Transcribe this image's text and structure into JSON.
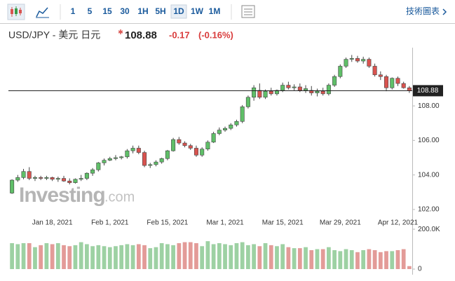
{
  "toolbar": {
    "intervals": [
      "1",
      "5",
      "15",
      "30",
      "1H",
      "5H",
      "1D",
      "1W",
      "1M"
    ],
    "selected": 6,
    "chart_link": "技術圖表"
  },
  "header": {
    "symbol": "USD/JPY - 美元 日元",
    "price": 108.88,
    "change": -0.17,
    "change_percent": {
      "value": -0.16,
      "label": "(-0.16%)"
    }
  },
  "watermark": [
    "Investing",
    ".com"
  ],
  "chart_data": {
    "type": "candlestick",
    "categories": [
      null,
      null,
      null,
      null,
      null,
      null,
      null,
      "Jan 18, 2021",
      null,
      null,
      null,
      null,
      null,
      null,
      null,
      null,
      null,
      "Feb 1, 2021",
      null,
      null,
      null,
      null,
      null,
      null,
      null,
      null,
      null,
      "Feb 15, 2021",
      null,
      null,
      null,
      null,
      null,
      null,
      null,
      null,
      null,
      "Mar 1, 2021",
      null,
      null,
      null,
      null,
      null,
      null,
      null,
      null,
      null,
      "Mar 15, 2021",
      null,
      null,
      null,
      null,
      null,
      null,
      null,
      null,
      null,
      "Mar 29, 2021",
      null,
      null,
      null,
      null,
      null,
      null,
      null,
      null,
      null,
      "Apr 12, 2021",
      null,
      null
    ],
    "open": [
      102.95,
      103.7,
      103.85,
      104.2,
      103.8,
      103.85,
      103.8,
      103.85,
      103.75,
      103.8,
      103.65,
      103.55,
      103.75,
      103.8,
      104.1,
      104.3,
      104.7,
      104.85,
      104.95,
      105.0,
      105.05,
      105.4,
      105.55,
      105.3,
      104.55,
      104.6,
      104.75,
      104.95,
      105.4,
      106.05,
      105.85,
      105.7,
      105.55,
      105.15,
      105.5,
      105.9,
      106.4,
      106.6,
      106.7,
      106.9,
      107.1,
      107.95,
      108.5,
      108.9,
      108.5,
      108.85,
      108.7,
      108.9,
      109.2,
      109.05,
      109.1,
      108.9,
      108.9,
      108.75,
      108.85,
      108.7,
      109.2,
      109.7,
      110.3,
      110.7,
      110.75,
      110.6,
      110.7,
      110.3,
      109.8,
      109.7,
      109.05,
      109.6,
      109.3,
      109.05
    ],
    "high": [
      103.75,
      104.0,
      104.35,
      104.45,
      103.95,
      103.95,
      103.95,
      103.9,
      103.9,
      103.95,
      103.8,
      103.8,
      104.0,
      104.15,
      104.4,
      104.75,
      104.95,
      105.05,
      105.15,
      105.1,
      105.5,
      105.7,
      105.7,
      105.4,
      104.7,
      104.85,
      105.0,
      105.45,
      106.15,
      106.2,
      105.95,
      105.8,
      105.7,
      105.6,
      106.0,
      106.5,
      106.75,
      106.8,
      107.0,
      107.2,
      108.05,
      108.6,
      109.2,
      109.3,
      108.95,
      109.05,
      108.95,
      109.35,
      109.4,
      109.25,
      109.3,
      109.2,
      109.15,
      109.0,
      109.05,
      109.3,
      109.8,
      110.4,
      110.8,
      110.95,
      110.9,
      110.85,
      110.8,
      110.45,
      110.0,
      109.8,
      109.65,
      109.7,
      109.4,
      109.15
    ],
    "low": [
      102.9,
      103.6,
      103.75,
      103.7,
      103.65,
      103.7,
      103.7,
      103.65,
      103.6,
      103.6,
      103.45,
      103.5,
      103.65,
      103.7,
      103.95,
      104.2,
      104.55,
      104.8,
      104.85,
      104.9,
      104.95,
      105.25,
      105.2,
      104.45,
      104.4,
      104.5,
      104.65,
      104.85,
      105.35,
      105.75,
      105.6,
      105.45,
      105.05,
      105.05,
      105.4,
      105.85,
      106.3,
      106.5,
      106.6,
      106.8,
      107.0,
      107.85,
      108.3,
      108.4,
      108.4,
      108.6,
      108.6,
      108.8,
      108.95,
      108.9,
      108.8,
      108.75,
      108.6,
      108.55,
      108.6,
      108.6,
      109.1,
      109.6,
      110.2,
      110.55,
      110.5,
      110.45,
      110.2,
      109.7,
      109.5,
      108.85,
      108.95,
      109.15,
      109.0,
      108.75
    ],
    "close": [
      103.7,
      103.85,
      104.2,
      103.8,
      103.85,
      103.8,
      103.85,
      103.75,
      103.8,
      103.65,
      103.55,
      103.75,
      103.8,
      104.1,
      104.3,
      104.7,
      104.85,
      104.95,
      105.0,
      105.05,
      105.4,
      105.55,
      105.3,
      104.55,
      104.6,
      104.75,
      104.95,
      105.4,
      106.05,
      105.85,
      105.7,
      105.55,
      105.15,
      105.5,
      105.9,
      106.4,
      106.6,
      106.7,
      106.9,
      107.1,
      107.95,
      108.5,
      109.05,
      108.5,
      108.85,
      108.7,
      108.9,
      109.2,
      109.05,
      109.1,
      108.9,
      109.0,
      108.75,
      108.85,
      108.7,
      109.2,
      109.7,
      110.3,
      110.7,
      110.75,
      110.6,
      110.7,
      110.3,
      109.8,
      109.7,
      109.05,
      109.6,
      109.3,
      109.05,
      108.88
    ],
    "volume": [
      130000,
      125000,
      130000,
      130000,
      110000,
      120000,
      130000,
      125000,
      130000,
      120000,
      115000,
      120000,
      135000,
      125000,
      115000,
      120000,
      115000,
      110000,
      115000,
      120000,
      125000,
      120000,
      125000,
      120000,
      105000,
      110000,
      130000,
      125000,
      120000,
      130000,
      135000,
      135000,
      130000,
      115000,
      140000,
      125000,
      130000,
      125000,
      120000,
      130000,
      135000,
      120000,
      125000,
      115000,
      130000,
      120000,
      115000,
      125000,
      110000,
      105000,
      105000,
      110000,
      95000,
      100000,
      100000,
      110000,
      95000,
      90000,
      100000,
      95000,
      85000,
      95000,
      100000,
      95000,
      85000,
      90000,
      90000,
      95000,
      100000,
      15000
    ],
    "up_color": "#5fbf68",
    "down_color": "#d9534f",
    "up_volume_color": "#9dd1a3",
    "down_volume_color": "#e39b98",
    "ylim": [
      101.55,
      111.09
    ],
    "yticks": [
      {
        "value": 102,
        "label": "102.00"
      },
      {
        "value": 104,
        "label": "104.00"
      },
      {
        "value": 106,
        "label": "106.00"
      },
      {
        "value": 108,
        "label": "108.00"
      }
    ],
    "vlim": [
      0,
      225000
    ],
    "vticks": [
      0,
      {
        "value": 200000,
        "label": "200.0K"
      }
    ],
    "grid": false
  }
}
